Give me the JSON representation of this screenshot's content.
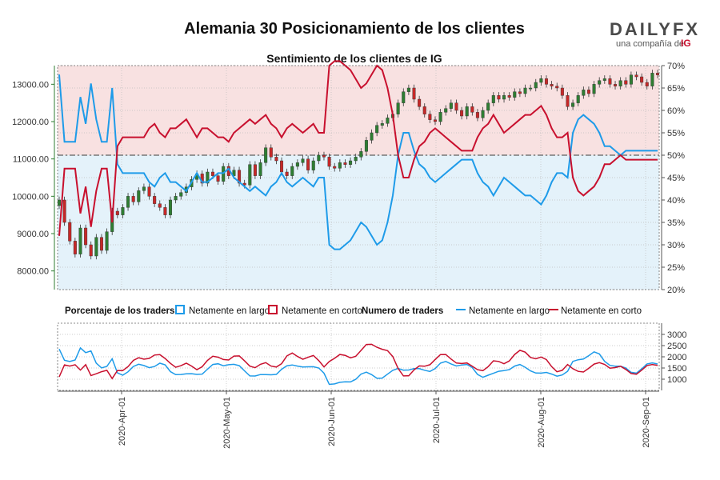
{
  "header": {
    "title": "Alemania 30 Posicionamiento de los clientes",
    "logo_text": "DAILYFX",
    "logo_sub": "una compañía de",
    "logo_ig": "IG"
  },
  "colors": {
    "long": "#1e9be9",
    "short": "#c8102e",
    "up_candle": "#2e7d32",
    "down_candle": "#c62828",
    "bg_long": "#e4f2fa",
    "bg_short": "#f8e1e1"
  },
  "chart_data": [
    {
      "type": "line",
      "title": "Sentimiento de los clientes de IG",
      "left_axis": {
        "ticks": [
          8000,
          9000,
          10000,
          11000,
          12000,
          13000
        ],
        "tick_labels": [
          "8000.00",
          "9000.00",
          "10000.00",
          "11000.00",
          "12000.00",
          "13000.00"
        ],
        "range": [
          7500,
          13500
        ]
      },
      "right_axis": {
        "ticks": [
          20,
          25,
          30,
          35,
          40,
          45,
          50,
          55,
          60,
          65,
          70
        ],
        "tick_labels": [
          "20%",
          "25%",
          "30%",
          "35%",
          "40%",
          "45%",
          "50%",
          "55%",
          "60%",
          "65%",
          "70%"
        ],
        "range": [
          20,
          70
        ]
      },
      "x_ticks": [
        "2020-Apr-01",
        "2020-May-01",
        "2020-Jun-01",
        "2020-Jul-01",
        "2020-Aug-01",
        "2020-Sep-01"
      ],
      "reference_line": 50,
      "price_close": [
        9900,
        9300,
        8800,
        8450,
        9150,
        8700,
        8400,
        8900,
        8550,
        9050,
        9600,
        9500,
        9700,
        10000,
        9850,
        10150,
        10250,
        10000,
        9800,
        9700,
        9500,
        9900,
        10000,
        10100,
        10250,
        10450,
        10600,
        10350,
        10650,
        10550,
        10400,
        10800,
        10550,
        10700,
        10350,
        10300,
        10850,
        10550,
        10900,
        11300,
        11050,
        10950,
        10650,
        10550,
        10800,
        10900,
        11000,
        10700,
        10950,
        11100,
        11050,
        10800,
        10750,
        10900,
        10850,
        10950,
        11050,
        11200,
        11500,
        11700,
        11900,
        11950,
        12100,
        12200,
        12500,
        12800,
        12900,
        12600,
        12400,
        12200,
        12050,
        12000,
        12250,
        12350,
        12500,
        12300,
        12150,
        12400,
        12250,
        12100,
        12300,
        12500,
        12700,
        12600,
        12700,
        12650,
        12800,
        12750,
        12900,
        12900,
        13050,
        13150,
        13000,
        12950,
        12900,
        12700,
        12400,
        12500,
        12700,
        12850,
        12750,
        13000,
        13100,
        13150,
        13000,
        12950,
        13100,
        13000,
        13250,
        13200,
        13050,
        12950,
        13300,
        13250
      ],
      "series": [
        {
          "name": "Netamente en largo",
          "values": [
            68,
            53,
            53,
            53,
            63,
            57,
            66,
            58,
            53,
            53,
            65,
            48,
            46,
            46,
            46,
            46,
            46,
            44,
            43,
            45,
            46,
            44,
            44,
            43,
            42,
            44,
            46,
            44,
            44,
            45,
            46,
            46,
            47,
            45,
            44,
            43,
            42,
            43,
            42,
            41,
            43,
            44,
            46,
            44,
            43,
            44,
            45,
            44,
            43,
            45,
            45,
            30,
            29,
            29,
            30,
            31,
            33,
            35,
            34,
            32,
            30,
            31,
            35,
            41,
            50,
            55,
            55,
            51,
            48,
            47,
            45,
            44,
            45,
            46,
            47,
            48,
            49,
            49,
            49,
            46,
            44,
            43,
            41,
            43,
            45,
            44,
            43,
            42,
            41,
            41,
            40,
            39,
            41,
            44,
            46,
            46,
            45,
            55,
            58,
            59,
            58,
            57,
            55,
            52,
            52,
            51,
            50,
            51,
            51,
            51,
            51,
            51,
            51,
            51
          ],
          "render": "upper"
        },
        {
          "name": "Netamente en corto",
          "values": [
            32,
            47,
            47,
            47,
            37,
            43,
            34,
            42,
            47,
            47,
            35,
            52,
            54,
            54,
            54,
            54,
            54,
            56,
            57,
            55,
            54,
            56,
            56,
            57,
            58,
            56,
            54,
            56,
            56,
            55,
            54,
            54,
            53,
            55,
            56,
            57,
            58,
            57,
            58,
            59,
            57,
            56,
            54,
            56,
            57,
            56,
            55,
            56,
            57,
            55,
            55,
            70,
            71,
            71,
            70,
            69,
            67,
            65,
            66,
            68,
            70,
            69,
            65,
            59,
            50,
            45,
            45,
            49,
            52,
            53,
            55,
            56,
            55,
            54,
            53,
            52,
            51,
            51,
            51,
            54,
            56,
            57,
            59,
            57,
            55,
            56,
            57,
            58,
            59,
            59,
            60,
            61,
            59,
            56,
            54,
            54,
            55,
            45,
            42,
            41,
            42,
            43,
            45,
            48,
            48,
            49,
            50,
            49,
            49,
            49,
            49,
            49,
            49,
            49
          ]
        }
      ]
    },
    {
      "type": "line",
      "title": "Numero de traders",
      "left_label": "Porcentaje de los traders",
      "right_axis": {
        "ticks": [
          1000,
          1500,
          2000,
          2500,
          3000
        ],
        "tick_labels": [
          "1000",
          "1500",
          "2000",
          "2500",
          "3000"
        ],
        "range": [
          500,
          3500
        ]
      },
      "series": [
        {
          "name": "Netamente en largo"
        },
        {
          "name": "Netamente en corto"
        }
      ]
    }
  ]
}
